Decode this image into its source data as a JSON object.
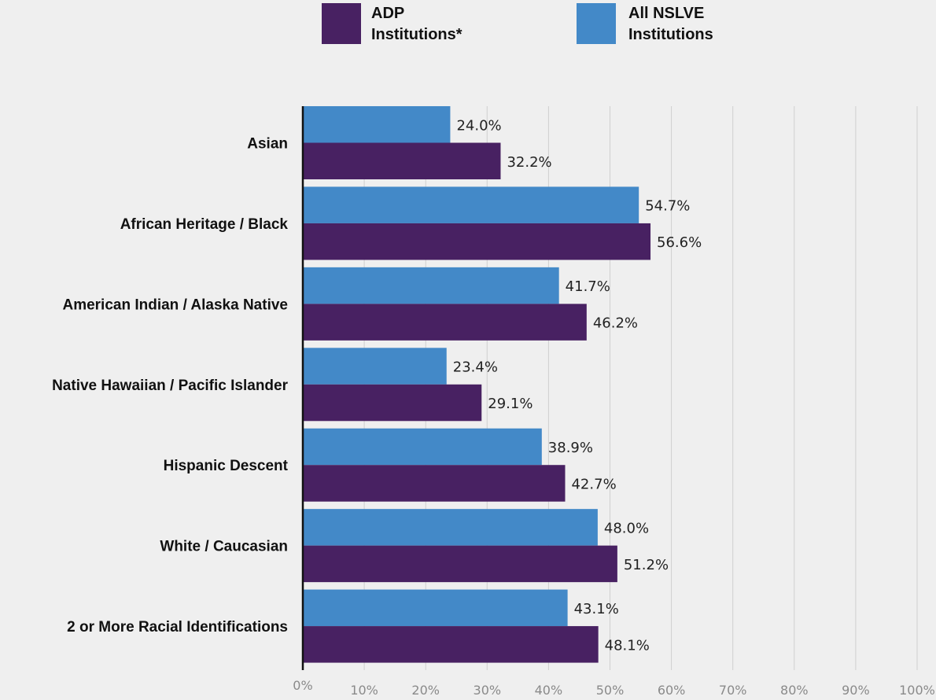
{
  "chart_data": {
    "type": "bar",
    "orientation": "horizontal",
    "categories": [
      "Asian",
      "African Heritage / Black",
      "American Indian / Alaska Native",
      "Native Hawaiian / Pacific Islander",
      "Hispanic Descent",
      "White / Caucasian",
      "2 or More Racial Identifications"
    ],
    "series": [
      {
        "name_lines": [
          "All NSLVE",
          "Institutions"
        ],
        "color": "#4389c8",
        "values": [
          24.0,
          54.7,
          41.7,
          23.4,
          38.9,
          48.0,
          43.1
        ],
        "value_labels": [
          "24.0%",
          "54.7%",
          "41.7%",
          "23.4%",
          "38.9%",
          "48.0%",
          "43.1%"
        ]
      },
      {
        "name_lines": [
          "ADP",
          "Institutions*"
        ],
        "color": "#482162",
        "values": [
          32.2,
          56.6,
          46.2,
          29.1,
          42.7,
          51.2,
          48.1
        ],
        "value_labels": [
          "32.2%",
          "56.6%",
          "46.2%",
          "29.1%",
          "42.7%",
          "51.2%",
          "48.1%"
        ]
      }
    ],
    "x_ticks": [
      0,
      10,
      20,
      30,
      40,
      50,
      60,
      70,
      80,
      90,
      100
    ],
    "x_tick_labels": [
      "0%",
      "10%",
      "20%",
      "30%",
      "40%",
      "50%",
      "60%",
      "70%",
      "80%",
      "90%",
      "100%"
    ],
    "xlim": [
      0,
      100
    ],
    "grid": true,
    "legend_position": "top",
    "legend_order": [
      1,
      0
    ]
  }
}
